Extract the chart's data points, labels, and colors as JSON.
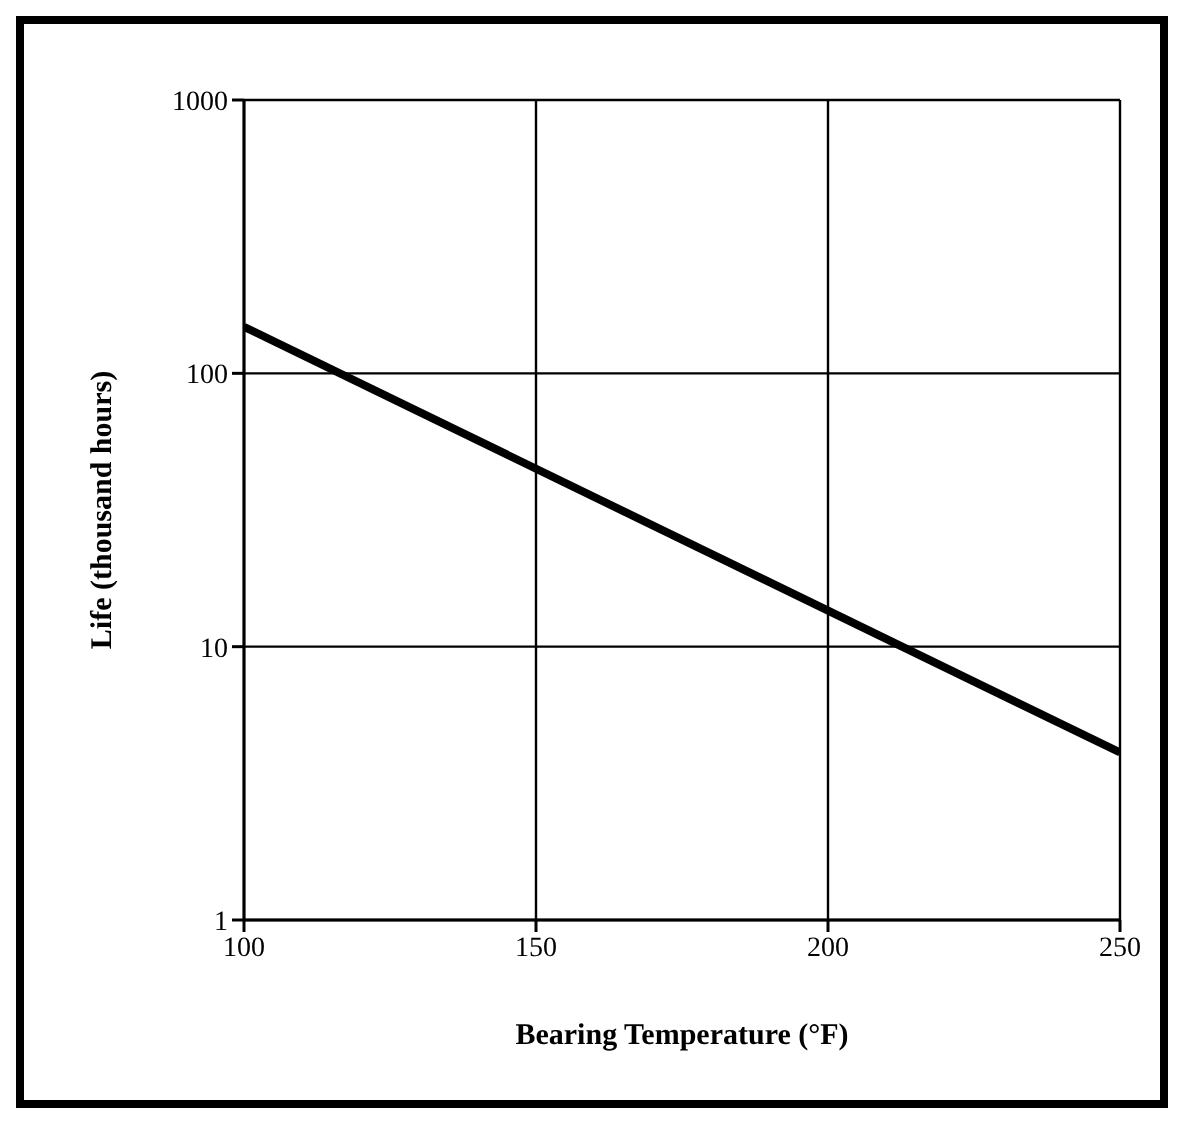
{
  "chart_data": {
    "type": "line",
    "xlabel": "Bearing Temperature (°F)",
    "ylabel": "Life (thousand hours)",
    "x": [
      100,
      250
    ],
    "series": [
      {
        "color": "#000000",
        "values": [
          148,
          4.1
        ]
      }
    ],
    "xlim": [
      100,
      250
    ],
    "xticks": [
      100,
      150,
      200,
      250
    ],
    "ylim": [
      1,
      1000
    ],
    "yticks": [
      1,
      10,
      100,
      1000
    ],
    "log": "y",
    "grid": true,
    "marker": "none",
    "line_style": "solid"
  }
}
